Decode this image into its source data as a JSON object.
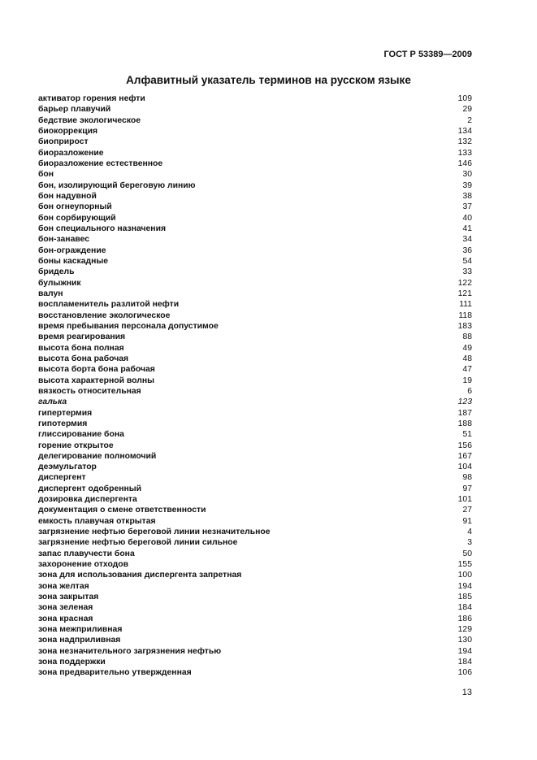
{
  "header": {
    "doc_code": "ГОСТ Р 53389—2009"
  },
  "title": "Алфавитный указатель терминов на русском языке",
  "entries": [
    {
      "term": "активатор горения нефти",
      "num": "109"
    },
    {
      "term": "барьер плавучий",
      "num": "29"
    },
    {
      "term": "бедствие экологическое",
      "num": "2"
    },
    {
      "term": "биокоррекция",
      "num": "134"
    },
    {
      "term": "биоприрост",
      "num": "132"
    },
    {
      "term": "биоразложение",
      "num": "133"
    },
    {
      "term": "биоразложение естественное",
      "num": "146"
    },
    {
      "term": "бон",
      "num": "30"
    },
    {
      "term": "бон, изолирующий береговую линию",
      "num": "39"
    },
    {
      "term": "бон надувной",
      "num": "38"
    },
    {
      "term": "бон огнеупорный",
      "num": "37"
    },
    {
      "term": "бон сорбирующий",
      "num": "40"
    },
    {
      "term": "бон специального назначения",
      "num": "41"
    },
    {
      "term": "бон-занавес",
      "num": "34"
    },
    {
      "term": "бон-ограждение",
      "num": "36"
    },
    {
      "term": "боны каскадные",
      "num": "54"
    },
    {
      "term": "бридель",
      "num": "33"
    },
    {
      "term": "булыжник",
      "num": "122"
    },
    {
      "term": "валун",
      "num": "121"
    },
    {
      "term": "воспламенитель разлитой нефти",
      "num": "111"
    },
    {
      "term": "восстановление экологическое",
      "num": "118"
    },
    {
      "term": "время пребывания персонала допустимое",
      "num": "183"
    },
    {
      "term": "время реагирования",
      "num": "88"
    },
    {
      "term": "высота бона полная",
      "num": "49"
    },
    {
      "term": "высота бона рабочая",
      "num": "48"
    },
    {
      "term": "высота борта бона рабочая",
      "num": "47"
    },
    {
      "term": "высота характерной волны",
      "num": "19"
    },
    {
      "term": "вязкость относительная",
      "num": "6"
    },
    {
      "term": "галька",
      "num": "123",
      "italic": true
    },
    {
      "term": "гипертермия",
      "num": "187"
    },
    {
      "term": "гипотермия",
      "num": "188"
    },
    {
      "term": "глиссирование бона",
      "num": "51"
    },
    {
      "term": "горение открытое",
      "num": "156"
    },
    {
      "term": "делегирование полномочий",
      "num": "167"
    },
    {
      "term": "деэмульгатор",
      "num": "104"
    },
    {
      "term": "диспергент",
      "num": "98"
    },
    {
      "term": "диспергент одобренный",
      "num": "97"
    },
    {
      "term": "дозировка диспергента",
      "num": "101"
    },
    {
      "term": "документация о смене ответственности",
      "num": "27"
    },
    {
      "term": "емкость плавучая открытая",
      "num": "91"
    },
    {
      "term": "загрязнение нефтью береговой линии незначительное",
      "num": "4"
    },
    {
      "term": "загрязнение нефтью береговой линии сильное",
      "num": "3"
    },
    {
      "term": "запас плавучести бона",
      "num": "50"
    },
    {
      "term": "захоронение отходов",
      "num": "155"
    },
    {
      "term": "зона для использования диспергента запретная",
      "num": "100"
    },
    {
      "term": "зона желтая",
      "num": "194"
    },
    {
      "term": "зона закрытая",
      "num": "185"
    },
    {
      "term": "зона зеленая",
      "num": "184"
    },
    {
      "term": "зона красная",
      "num": "186"
    },
    {
      "term": "зона межприливная",
      "num": "129"
    },
    {
      "term": "зона надприливная",
      "num": "130"
    },
    {
      "term": "зона незначительного загрязнения нефтью",
      "num": "194"
    },
    {
      "term": "зона поддержки",
      "num": "184"
    },
    {
      "term": "зона предварительно утвержденная",
      "num": "106"
    }
  ],
  "page_number": "13"
}
